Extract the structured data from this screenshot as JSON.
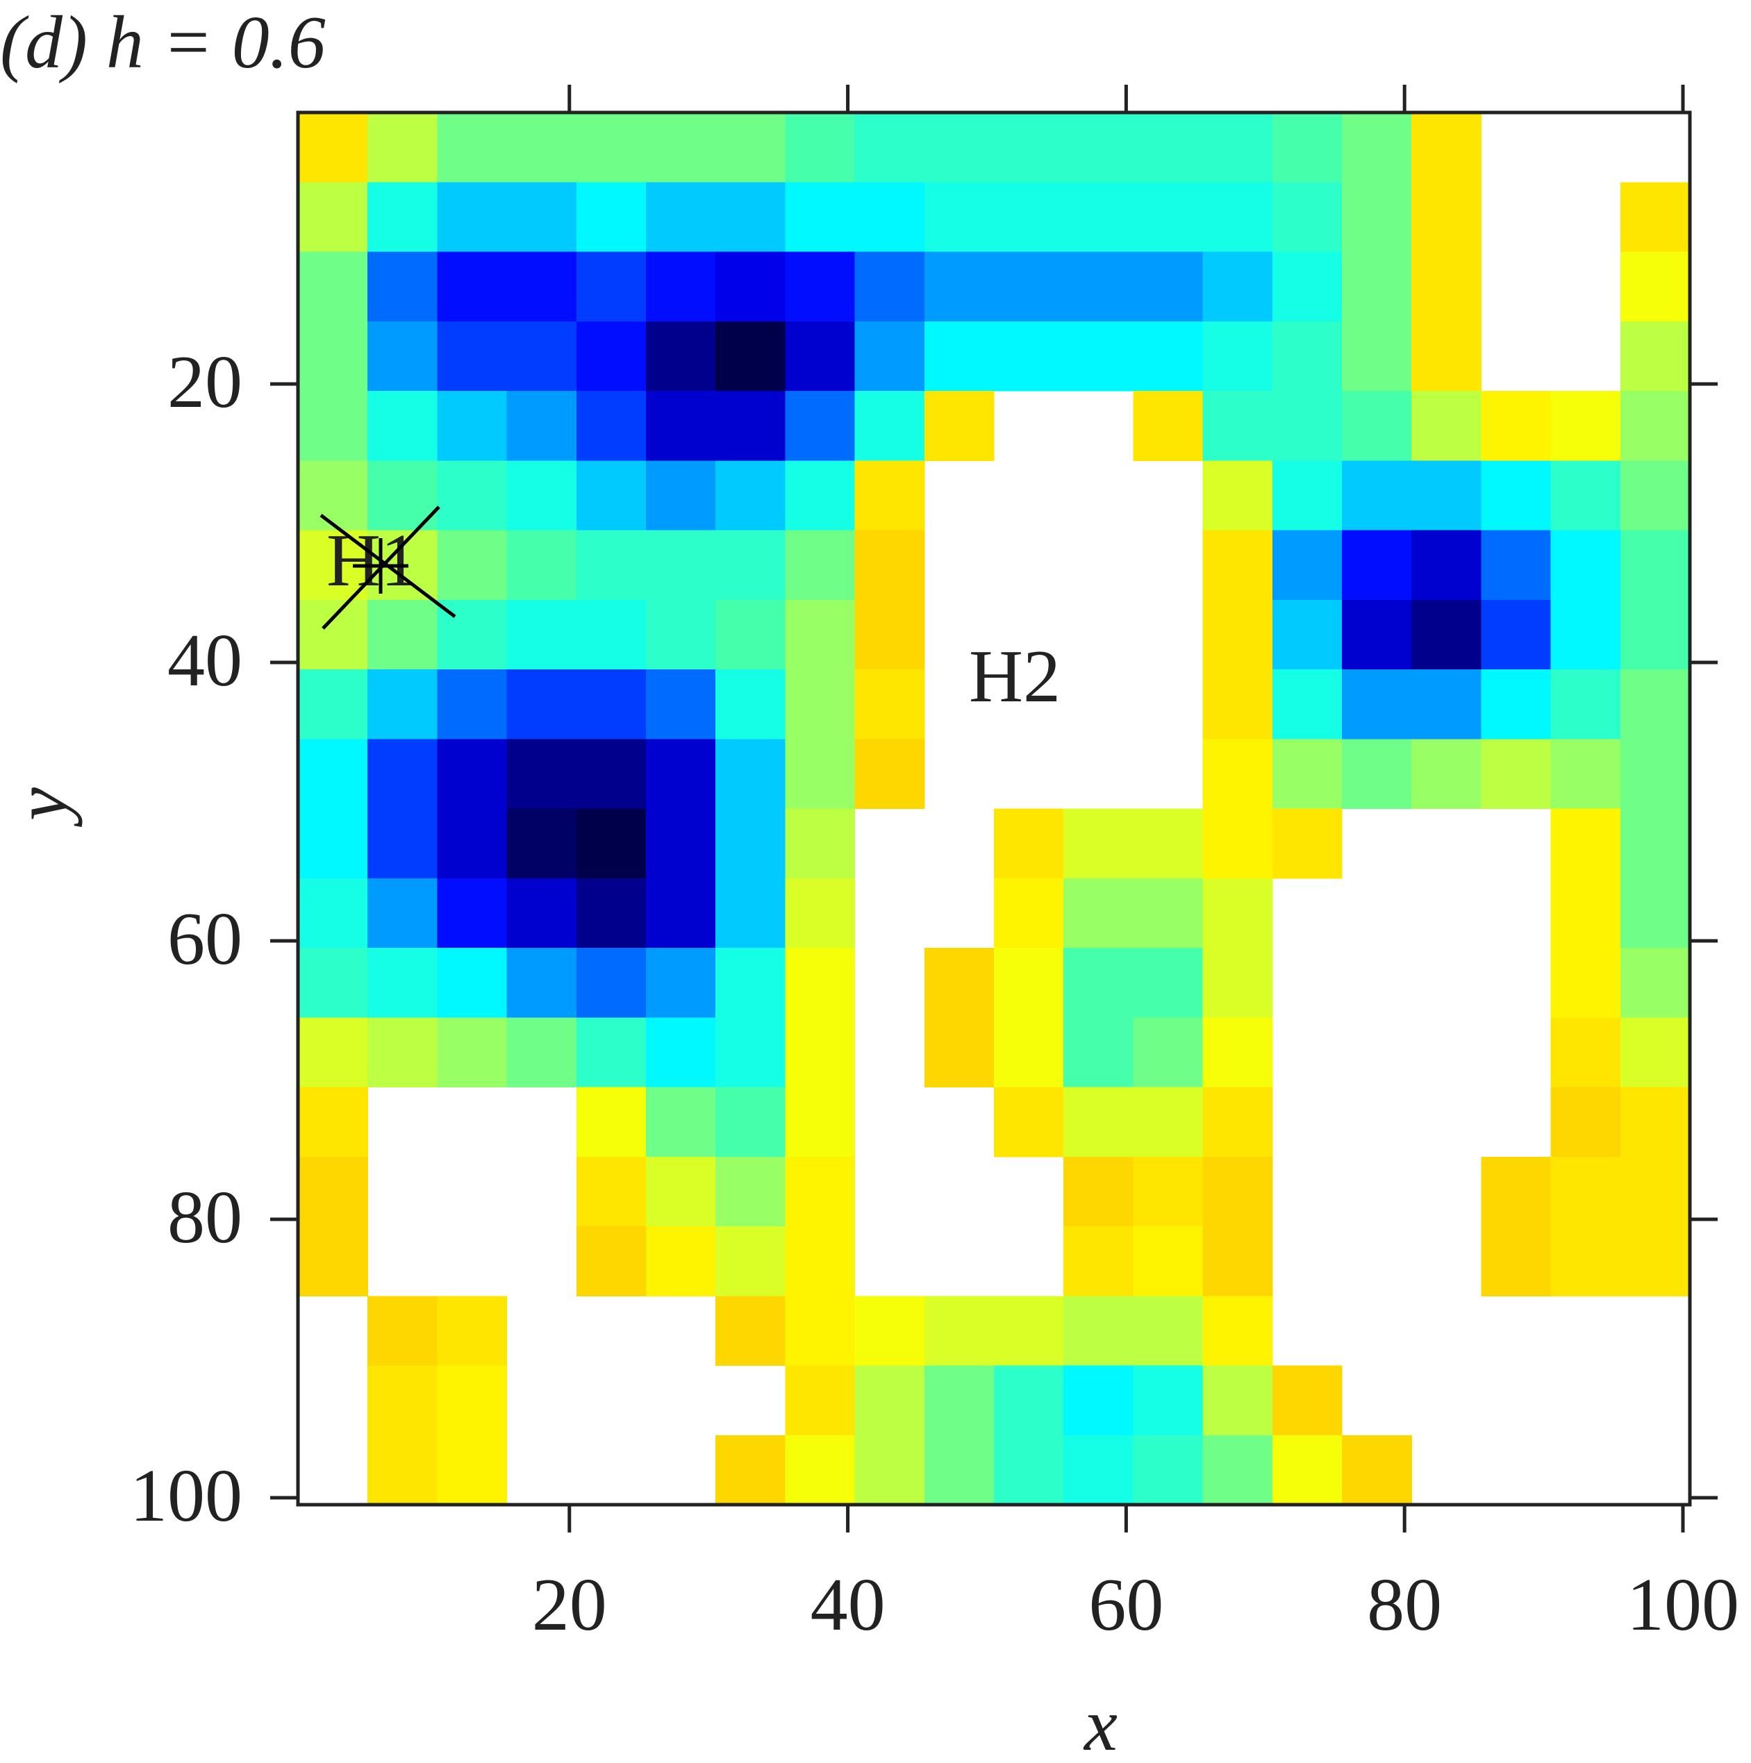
{
  "chart_data": {
    "type": "heatmap",
    "title": "(d)  h = 0.6",
    "xlabel": "x",
    "ylabel": "y",
    "annotations": [
      "H1",
      "H2"
    ],
    "xlim": [
      0.5,
      100.5
    ],
    "ylim": [
      0.5,
      100.5
    ],
    "y_reversed": true,
    "xticks": [
      20,
      40,
      60,
      80,
      100
    ],
    "yticks": [
      20,
      40,
      60,
      80,
      100
    ],
    "colormap": [
      "#00004a",
      "#0000ff",
      "#0080ff",
      "#00ffff",
      "#40ffb0",
      "#b0ff50",
      "#ffff00",
      "#ffd700"
    ],
    "z": [
      [
        0.9,
        0.7,
        0.6,
        0.6,
        0.6,
        0.6,
        0.6,
        0.55,
        0.5,
        0.5,
        0.5,
        0.5,
        0.5,
        0.5,
        0.55,
        0.6,
        0.9,
        null,
        null,
        null
      ],
      [
        0.7,
        0.45,
        0.35,
        0.35,
        0.4,
        0.35,
        0.35,
        0.4,
        0.4,
        0.45,
        0.45,
        0.45,
        0.45,
        0.45,
        0.5,
        0.6,
        0.9,
        null,
        null,
        0.9
      ],
      [
        0.6,
        0.25,
        0.15,
        0.15,
        0.2,
        0.15,
        0.12,
        0.15,
        0.25,
        0.3,
        0.3,
        0.3,
        0.3,
        0.35,
        0.45,
        0.6,
        0.9,
        null,
        null,
        0.8
      ],
      [
        0.6,
        0.3,
        0.2,
        0.2,
        0.15,
        0.05,
        0.0,
        0.1,
        0.3,
        0.4,
        0.4,
        0.4,
        0.4,
        0.45,
        0.5,
        0.6,
        0.9,
        null,
        null,
        0.7
      ],
      [
        0.6,
        0.45,
        0.35,
        0.3,
        0.2,
        0.1,
        0.1,
        0.25,
        0.45,
        0.9,
        null,
        null,
        0.9,
        0.5,
        0.5,
        0.55,
        0.7,
        0.85,
        0.8,
        0.65
      ],
      [
        0.65,
        0.55,
        0.5,
        0.45,
        0.35,
        0.3,
        0.35,
        0.45,
        0.9,
        null,
        null,
        null,
        null,
        0.75,
        0.45,
        0.35,
        0.35,
        0.4,
        0.5,
        0.6
      ],
      [
        0.75,
        0.7,
        0.6,
        0.55,
        0.5,
        0.5,
        0.5,
        0.6,
        0.95,
        null,
        null,
        null,
        null,
        0.9,
        0.3,
        0.15,
        0.1,
        0.25,
        0.4,
        0.55
      ],
      [
        0.7,
        0.6,
        0.5,
        0.45,
        0.45,
        0.5,
        0.55,
        0.65,
        0.95,
        null,
        null,
        null,
        null,
        0.9,
        0.35,
        0.1,
        0.05,
        0.2,
        0.4,
        0.55
      ],
      [
        0.5,
        0.35,
        0.25,
        0.2,
        0.2,
        0.25,
        0.45,
        0.65,
        0.9,
        null,
        null,
        null,
        null,
        0.9,
        0.45,
        0.3,
        0.3,
        0.4,
        0.5,
        0.6
      ],
      [
        0.4,
        0.2,
        0.1,
        0.05,
        0.05,
        0.1,
        0.35,
        0.65,
        0.95,
        null,
        null,
        null,
        null,
        0.85,
        0.65,
        0.6,
        0.65,
        0.7,
        0.65,
        0.6
      ],
      [
        0.4,
        0.2,
        0.1,
        0.02,
        0.0,
        0.1,
        0.35,
        0.7,
        null,
        null,
        0.9,
        0.75,
        0.75,
        0.85,
        0.9,
        null,
        null,
        null,
        0.85,
        0.6
      ],
      [
        0.45,
        0.3,
        0.15,
        0.1,
        0.05,
        0.1,
        0.35,
        0.75,
        null,
        null,
        0.85,
        0.65,
        0.65,
        0.75,
        null,
        null,
        null,
        null,
        0.85,
        0.6
      ],
      [
        0.5,
        0.45,
        0.4,
        0.3,
        0.25,
        0.3,
        0.45,
        0.8,
        null,
        0.95,
        0.8,
        0.55,
        0.55,
        0.75,
        null,
        null,
        null,
        null,
        0.85,
        0.65
      ],
      [
        0.75,
        0.7,
        0.65,
        0.6,
        0.5,
        0.4,
        0.45,
        0.8,
        null,
        0.95,
        0.8,
        0.55,
        0.6,
        0.8,
        null,
        null,
        null,
        null,
        0.9,
        0.75
      ],
      [
        0.9,
        null,
        null,
        null,
        0.8,
        0.6,
        0.55,
        0.8,
        null,
        null,
        0.9,
        0.75,
        0.75,
        0.9,
        null,
        null,
        null,
        null,
        0.95,
        0.9
      ],
      [
        0.95,
        null,
        null,
        null,
        0.9,
        0.75,
        0.65,
        0.85,
        null,
        null,
        null,
        0.95,
        0.9,
        0.95,
        null,
        null,
        null,
        0.95,
        0.9,
        0.9
      ],
      [
        0.95,
        null,
        null,
        null,
        0.95,
        0.85,
        0.75,
        0.85,
        null,
        null,
        null,
        0.9,
        0.85,
        0.95,
        null,
        null,
        null,
        0.95,
        0.9,
        0.9
      ],
      [
        null,
        0.95,
        0.9,
        null,
        null,
        null,
        0.95,
        0.85,
        0.8,
        0.75,
        0.75,
        0.7,
        0.7,
        0.85,
        null,
        null,
        null,
        null,
        null,
        null
      ],
      [
        null,
        0.9,
        0.85,
        null,
        null,
        null,
        null,
        0.9,
        0.7,
        0.6,
        0.5,
        0.4,
        0.45,
        0.7,
        0.95,
        null,
        null,
        null,
        null,
        null
      ],
      [
        null,
        0.9,
        0.85,
        null,
        null,
        null,
        0.95,
        0.8,
        0.7,
        0.6,
        0.5,
        0.45,
        0.5,
        0.6,
        0.8,
        0.95,
        null,
        null,
        null,
        null
      ]
    ]
  }
}
